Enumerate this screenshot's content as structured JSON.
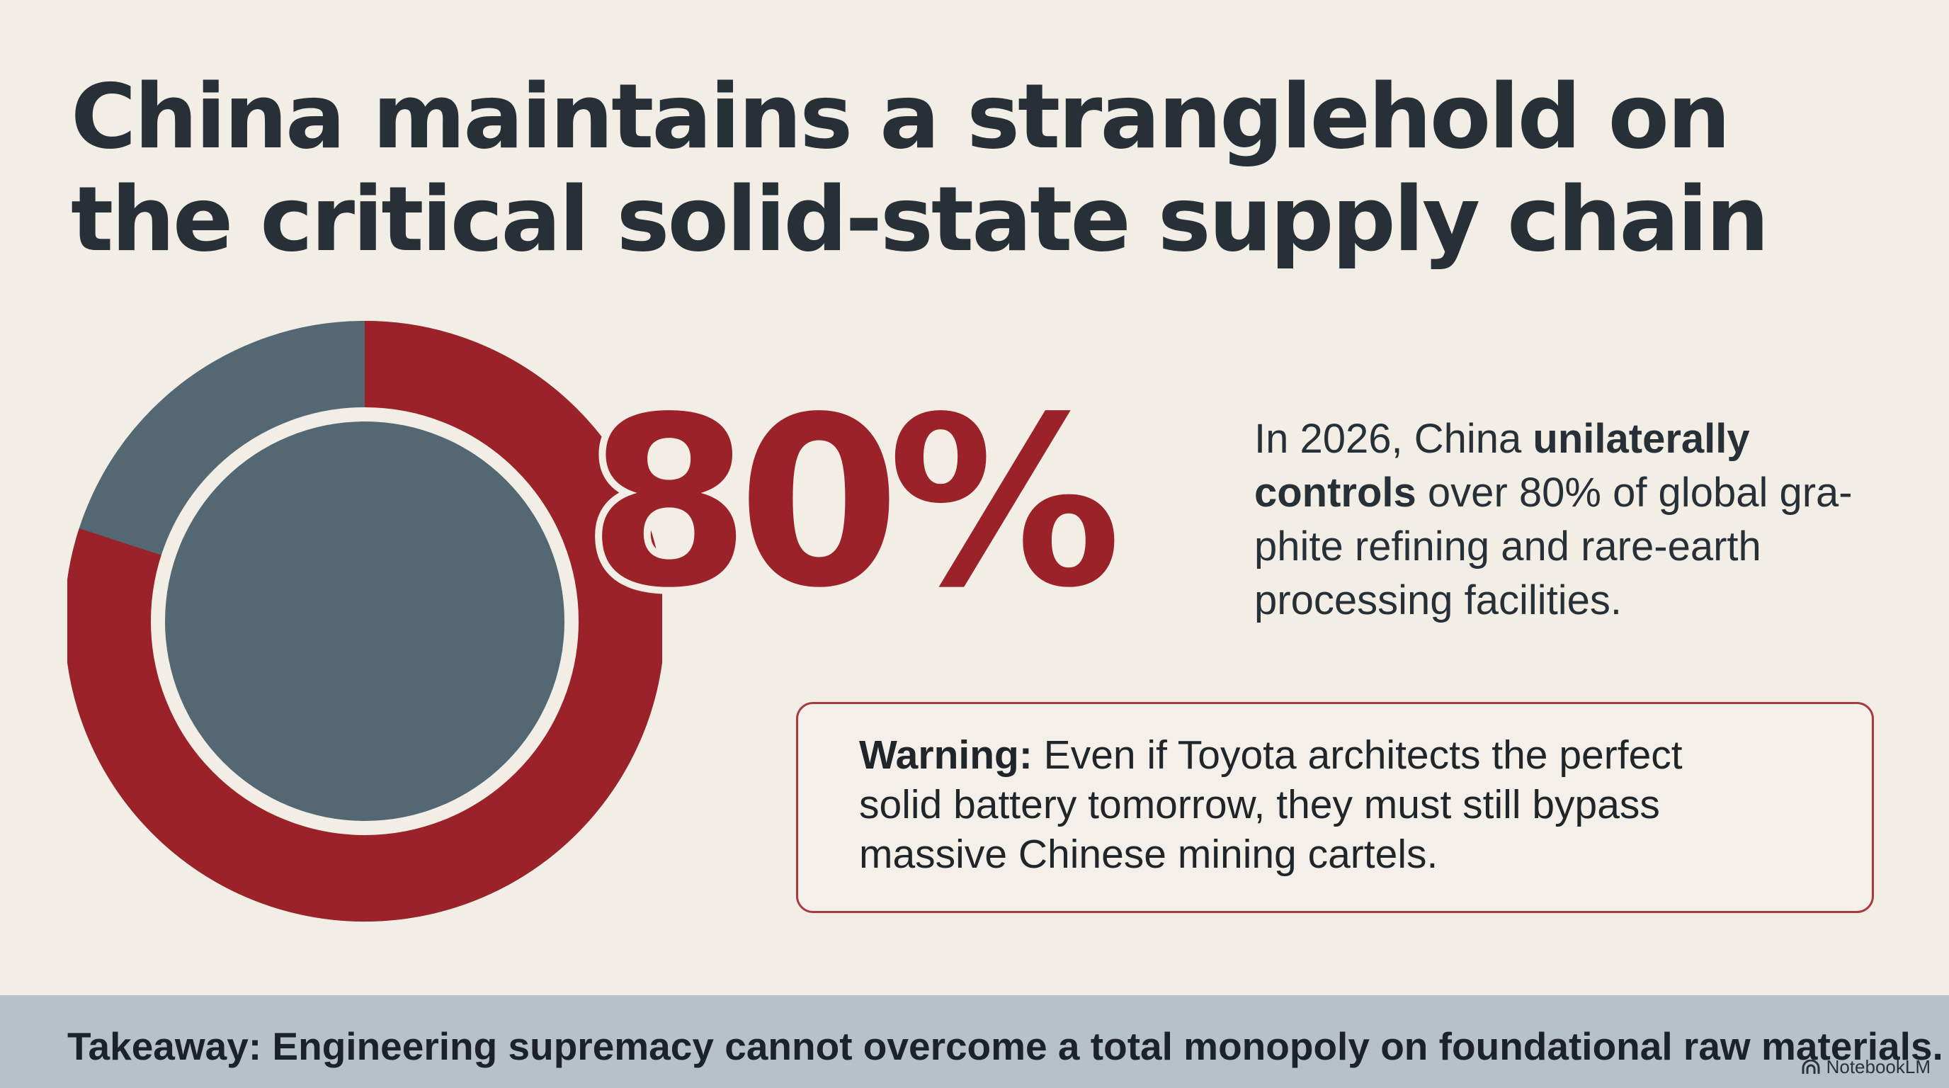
{
  "slide": {
    "title_line1": "China maintains a stranglehold on",
    "title_line2": "the critical solid-state supply chain"
  },
  "stat": {
    "value": "80%",
    "share_percent": 80,
    "intro": "In 2026, China ",
    "emphasis_line1": "unilaterally",
    "emphasis_line2": "controls",
    "rest_line2": " over 80% of global gra-",
    "line3": "phite refining and rare-earth",
    "line4": "processing facilities."
  },
  "warning": {
    "label": "Warning:",
    "text_line1": " Even if Toyota architects the perfect",
    "text_line2": "solid battery tomorrow, they must still bypass",
    "text_line3": "massive Chinese mining cartels."
  },
  "footer": {
    "takeaway": "Takeaway: Engineering supremacy cannot overcome a total monopoly on foundational raw materials.",
    "brand": "NotebookLM"
  },
  "colors": {
    "background": "#f2eee6",
    "accent_red": "#9b2229",
    "slate": "#546873",
    "footer_band": "#b6c2c8",
    "text_dark": "#263036"
  },
  "icons": {
    "brand": "notebooklm-logo-icon"
  }
}
